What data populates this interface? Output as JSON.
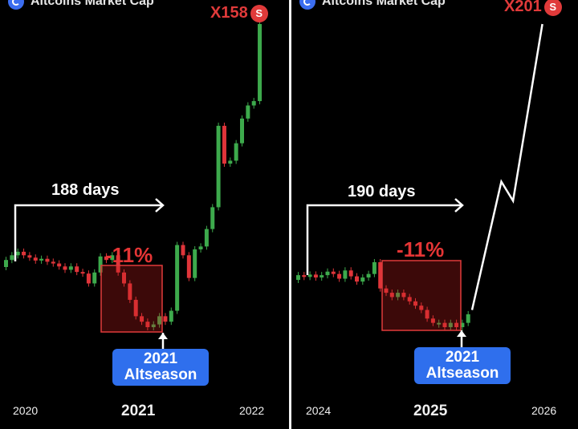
{
  "colors": {
    "up": "#3daa4c",
    "down": "#e0353a",
    "highlight": "#e03a3a",
    "badge": "#2f6fed"
  },
  "panels": [
    {
      "title": "Altcoins Market Cap",
      "multiplier": "X158",
      "multiplier_badge": "S",
      "days_label": "188 days",
      "drop_label": "-11%",
      "season_line1": "2021",
      "season_line2": "Altseason",
      "years": [
        "2020",
        "2021",
        "2022"
      ]
    },
    {
      "title": "Altcoins Market Cap",
      "multiplier": "X201",
      "multiplier_badge": "S",
      "days_label": "190 days",
      "drop_label": "-11%",
      "season_line1": "2021",
      "season_line2": "Altseason",
      "years": [
        "2024",
        "2025",
        "2026"
      ]
    }
  ],
  "chart_data": [
    {
      "type": "candlestick",
      "title": "Altcoins Market Cap",
      "x_ticks": [
        "2020",
        "2021",
        "2022"
      ],
      "candles": [
        [
          0.0,
          1.2
        ],
        [
          1.2,
          2.0
        ],
        [
          2.0,
          2.6
        ],
        [
          2.6,
          2.0
        ],
        [
          2.0,
          1.6
        ],
        [
          1.6,
          1.1
        ],
        [
          1.1,
          1.4
        ],
        [
          1.4,
          0.9
        ],
        [
          0.9,
          0.6
        ],
        [
          0.6,
          0.1
        ],
        [
          0.1,
          -0.5
        ],
        [
          -0.5,
          0.1
        ],
        [
          0.1,
          -0.9
        ],
        [
          -0.9,
          -1.2
        ],
        [
          -1.2,
          -3.0
        ],
        [
          -3.0,
          -1.0
        ],
        [
          -1.0,
          1.8
        ],
        [
          1.8,
          1.2
        ],
        [
          1.2,
          2.0
        ],
        [
          2.0,
          -1.0
        ],
        [
          -1.0,
          -3.0
        ],
        [
          -3.0,
          -6.0
        ],
        [
          -6.0,
          -9.0
        ],
        [
          -9.0,
          -10.0
        ],
        [
          -10.0,
          -11.0
        ],
        [
          -11.0,
          -10.5
        ],
        [
          -10.5,
          -9.0
        ],
        [
          -9.0,
          -10.0
        ],
        [
          -10.0,
          -8.0
        ],
        [
          -8.0,
          6.0
        ],
        [
          6.0,
          2.0
        ],
        [
          2.0,
          -2.0
        ],
        [
          -2.0,
          3.0
        ],
        [
          3.0,
          5.0
        ],
        [
          5.0,
          17.0
        ],
        [
          17.0,
          32.0
        ],
        [
          32.0,
          88.0
        ],
        [
          88.0,
          62.0
        ],
        [
          62.0,
          64.0
        ],
        [
          64.0,
          76.0
        ],
        [
          76.0,
          93.0
        ],
        [
          93.0,
          102.0
        ],
        [
          102.0,
          105.0
        ],
        [
          105.0,
          158.0
        ]
      ]
    },
    {
      "type": "candlestick",
      "title": "Altcoins Market Cap",
      "x_ticks": [
        "2024",
        "2025",
        "2026"
      ],
      "candles": [
        [
          0.0,
          0.8
        ],
        [
          0.8,
          0.5
        ],
        [
          0.5,
          0.9
        ],
        [
          0.9,
          0.4
        ],
        [
          0.4,
          0.8
        ],
        [
          0.8,
          1.4
        ],
        [
          1.4,
          1.0
        ],
        [
          1.0,
          0.2
        ],
        [
          0.2,
          1.6
        ],
        [
          1.6,
          0.6
        ],
        [
          0.6,
          -0.4
        ],
        [
          -0.4,
          0.4
        ],
        [
          0.4,
          1.0
        ],
        [
          1.0,
          3.0
        ],
        [
          3.0,
          -2.0
        ],
        [
          -2.0,
          -3.0
        ],
        [
          -3.0,
          -4.0
        ],
        [
          -4.0,
          -3.0
        ],
        [
          -3.0,
          -4.0
        ],
        [
          -4.0,
          -5.0
        ],
        [
          -5.0,
          -6.0
        ],
        [
          -6.0,
          -7.0
        ],
        [
          -7.0,
          -9.0
        ],
        [
          -9.0,
          -10.0
        ],
        [
          -10.0,
          -10.0
        ],
        [
          -10.0,
          -11.0
        ],
        [
          -11.0,
          -10.0
        ],
        [
          -10.0,
          -11.0
        ],
        [
          -11.0,
          -10.0
        ],
        [
          -10.0,
          -8.0
        ]
      ],
      "projection": [
        [
          30,
          -7
        ],
        [
          35,
          70
        ],
        [
          37,
          54
        ],
        [
          42,
          201
        ]
      ]
    }
  ]
}
